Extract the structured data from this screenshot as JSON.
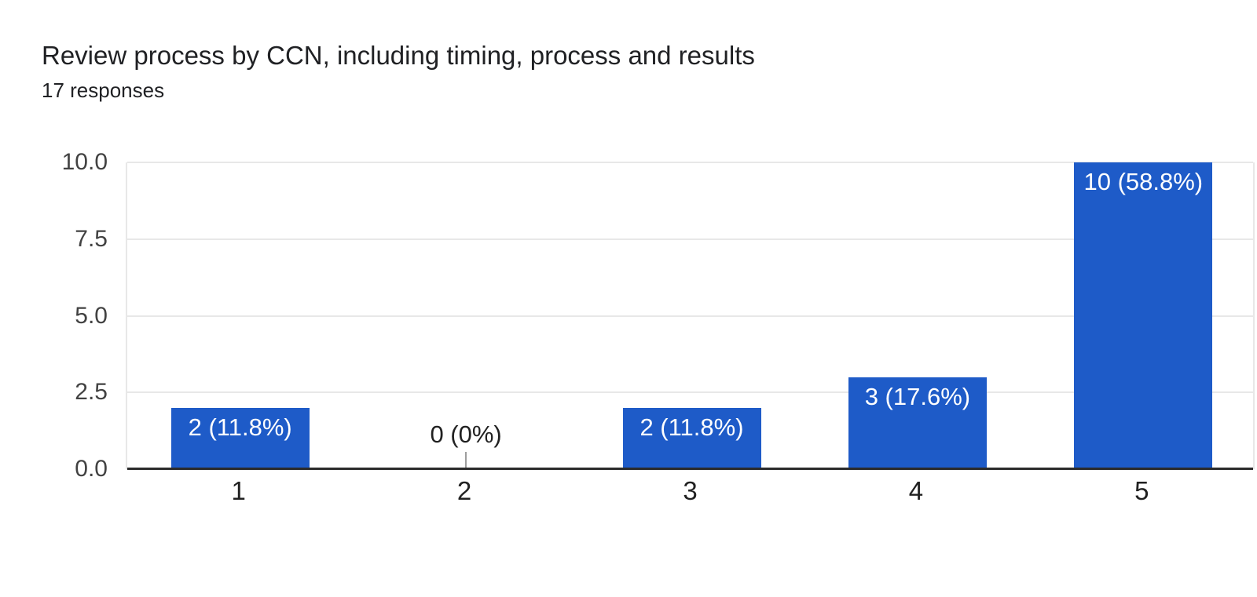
{
  "header": {
    "title": "Review process by CCN, including timing, process and results",
    "subtitle": "17 responses"
  },
  "chart_data": {
    "type": "bar",
    "title": "Review process by CCN, including timing, process and results",
    "subtitle": "17 responses",
    "categories": [
      "1",
      "2",
      "3",
      "4",
      "5"
    ],
    "values": [
      2,
      0,
      2,
      3,
      10
    ],
    "bar_labels": [
      "2 (11.8%)",
      "0 (0%)",
      "2 (11.8%)",
      "3 (17.6%)",
      "10 (58.8%)"
    ],
    "xlabel": "",
    "ylabel": "",
    "ylim": [
      0,
      10
    ],
    "yticks": [
      0.0,
      2.5,
      5.0,
      7.5,
      10.0
    ],
    "ytick_labels": [
      "0.0",
      "2.5",
      "5.0",
      "7.5",
      "10.0"
    ],
    "grid": true,
    "legend": "none",
    "colors": {
      "bar": "#1e5bc8",
      "bar_label_text": "#ffffff",
      "zero_label_text": "#212121",
      "gridline": "#e8e8e8",
      "baseline": "#2b2b2b",
      "title_text": "#202124",
      "axis_tick_text": "#424242"
    }
  }
}
